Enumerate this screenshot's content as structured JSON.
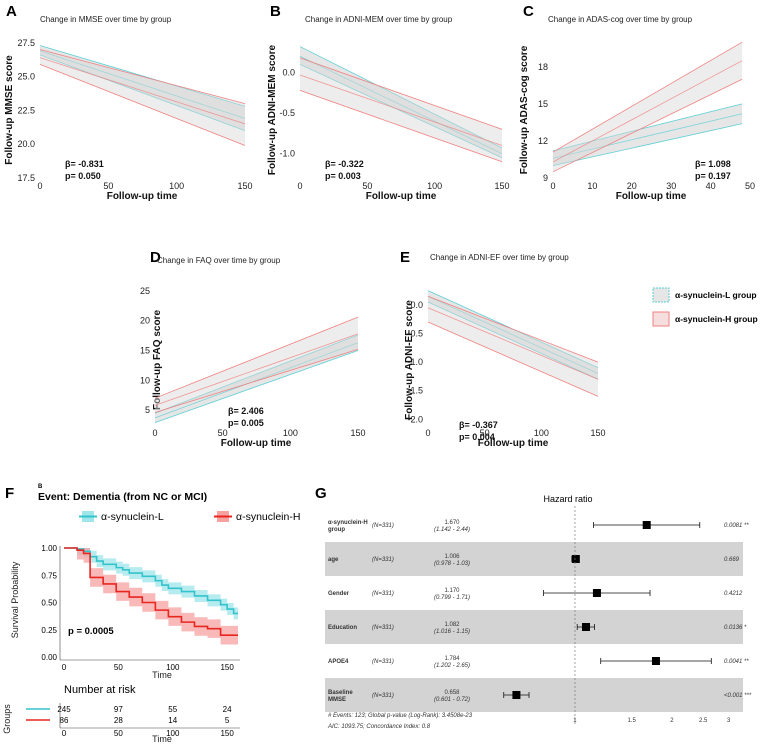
{
  "colors": {
    "groupL": "#5ccfd6",
    "groupH": "#f08080",
    "band": "#cfcfcf",
    "kmL": "#34c3cc",
    "kmH": "#e8261f",
    "kmLFill": "#9ee6ea",
    "kmHFill": "#f7a1a1",
    "forestShade": "#d3d3d3"
  },
  "legend": {
    "groupL": "α-synuclein-L group",
    "groupH": "α-synuclein-H group"
  },
  "panels": [
    {
      "letter": "A",
      "title": "Change in MMSE over time by group",
      "ylabel": "Follow-up MMSE score",
      "xlabel": "Follow-up time",
      "beta": "β= -0.831",
      "p": "p= 0.050",
      "xticks": [
        "0",
        "50",
        "100",
        "150"
      ],
      "yticks": [
        "27.5",
        "25.0",
        "22.5",
        "20.0",
        "17.5"
      ]
    },
    {
      "letter": "B",
      "title": "Change in ADNI-MEM over time by group",
      "ylabel": "Follow-up ADNI-MEM score",
      "xlabel": "Follow-up time",
      "beta": "β= -0.322",
      "p": "p= 0.003",
      "xticks": [
        "0",
        "50",
        "100",
        "150"
      ],
      "yticks": [
        "0.0",
        "-0.5",
        "-1.0"
      ]
    },
    {
      "letter": "C",
      "title": "Change in ADAS-cog over time by group",
      "ylabel": "Follow-up ADAS-cog score",
      "xlabel": "Follow-up time",
      "beta": "β= 1.098",
      "p": "p= 0.197",
      "xticks": [
        "0",
        "10",
        "20",
        "30",
        "40",
        "50"
      ],
      "yticks": [
        "18",
        "15",
        "12",
        "9"
      ]
    },
    {
      "letter": "D",
      "title": "Change in FAQ over time by group",
      "ylabel": "Follow-up FAQ score",
      "xlabel": "Follow-up time",
      "beta": "β= 2.406",
      "p": "p= 0.005",
      "xticks": [
        "0",
        "50",
        "100",
        "150"
      ],
      "yticks": [
        "25",
        "20",
        "15",
        "10",
        "5"
      ]
    },
    {
      "letter": "E",
      "title": "Change in ADNI-EF over time by group",
      "ylabel": "Follow-up ADNI-EF score",
      "xlabel": "Follow-up time",
      "beta": "β= -0.367",
      "p": "p= 0.004",
      "xticks": [
        "0",
        "50",
        "100",
        "150"
      ],
      "yticks": [
        "0.0",
        "-0.5",
        "-1.0",
        "-1.5",
        "-2.0"
      ]
    }
  ],
  "chart_data": [
    {
      "id": "A",
      "type": "line",
      "title": "Change in MMSE over time by group",
      "xlabel": "Follow-up time",
      "ylabel": "Follow-up MMSE score",
      "xlim": [
        0,
        150
      ],
      "ylim": [
        17.5,
        28.0
      ],
      "series": [
        {
          "name": "α-synuclein-L group",
          "x": [
            0,
            150
          ],
          "y": [
            26.9,
            21.9
          ],
          "lower": [
            26.6,
            21.0
          ],
          "upper": [
            27.3,
            22.8
          ]
        },
        {
          "name": "α-synuclein-H group",
          "x": [
            0,
            150
          ],
          "y": [
            26.4,
            21.5
          ],
          "lower": [
            25.9,
            19.9
          ],
          "upper": [
            27.0,
            23.0
          ]
        }
      ]
    },
    {
      "id": "B",
      "type": "line",
      "title": "Change in ADNI-MEM over time by group",
      "xlabel": "Follow-up time",
      "ylabel": "Follow-up ADNI-MEM score",
      "xlim": [
        0,
        150
      ],
      "ylim": [
        -1.3,
        0.45
      ],
      "series": [
        {
          "name": "α-synuclein-L group",
          "x": [
            0,
            150
          ],
          "y": [
            0.2,
            -1.0
          ],
          "lower": [
            0.1,
            -1.05
          ],
          "upper": [
            0.32,
            -0.93
          ]
        },
        {
          "name": "α-synuclein-H group",
          "x": [
            0,
            150
          ],
          "y": [
            -0.03,
            -0.9
          ],
          "lower": [
            -0.22,
            -1.1
          ],
          "upper": [
            0.18,
            -0.7
          ]
        }
      ]
    },
    {
      "id": "C",
      "type": "line",
      "title": "Change in ADAS-cog over time by group",
      "xlabel": "Follow-up time",
      "ylabel": "Follow-up ADAS-cog score",
      "xlim": [
        0,
        50
      ],
      "ylim": [
        9,
        20.5
      ],
      "series": [
        {
          "name": "α-synuclein-L group",
          "x": [
            0,
            48
          ],
          "y": [
            10.6,
            14.2
          ],
          "lower": [
            10.0,
            13.4
          ],
          "upper": [
            11.2,
            15.0
          ]
        },
        {
          "name": "α-synuclein-H group",
          "x": [
            0,
            48
          ],
          "y": [
            10.3,
            18.5
          ],
          "lower": [
            9.5,
            17.0
          ],
          "upper": [
            11.1,
            20.0
          ]
        }
      ]
    },
    {
      "id": "D",
      "type": "line",
      "title": "Change in FAQ over time by group",
      "xlabel": "Follow-up time",
      "ylabel": "Follow-up FAQ score",
      "xlim": [
        0,
        150
      ],
      "ylim": [
        2.5,
        26.5
      ],
      "series": [
        {
          "name": "α-synuclein-L group",
          "x": [
            0,
            150
          ],
          "y": [
            3.7,
            16.3
          ],
          "lower": [
            2.9,
            15.0
          ],
          "upper": [
            4.5,
            17.6
          ]
        },
        {
          "name": "α-synuclein-H group",
          "x": [
            0,
            150
          ],
          "y": [
            5.8,
            17.8
          ],
          "lower": [
            4.6,
            15.2
          ],
          "upper": [
            7.0,
            20.6
          ]
        }
      ]
    },
    {
      "id": "E",
      "type": "line",
      "title": "Change in ADNI-EF over time by group",
      "xlabel": "Follow-up time",
      "ylabel": "Follow-up ADNI-EF score",
      "xlim": [
        0,
        150
      ],
      "ylim": [
        -2.1,
        0.4
      ],
      "series": [
        {
          "name": "α-synuclein-L group",
          "x": [
            0,
            150
          ],
          "y": [
            0.15,
            -1.2
          ],
          "lower": [
            0.05,
            -1.3
          ],
          "upper": [
            0.25,
            -1.1
          ]
        },
        {
          "name": "α-synuclein-H group",
          "x": [
            0,
            150
          ],
          "y": [
            -0.05,
            -1.3
          ],
          "lower": [
            -0.3,
            -1.6
          ],
          "upper": [
            0.15,
            -1.0
          ]
        }
      ]
    },
    {
      "id": "F",
      "type": "line",
      "subtype": "kaplan-meier",
      "title": "Event: Dementia (from NC or MCI)",
      "xlabel": "Time",
      "ylabel": "Survival Probability",
      "xlim": [
        0,
        160
      ],
      "ylim": [
        0,
        1
      ],
      "legend": [
        "α-synuclein-L",
        "α-synuclein-H"
      ],
      "pvalue": "p = 0.0005",
      "series": [
        {
          "name": "α-synuclein-L",
          "x": [
            0,
            12,
            18,
            24,
            30,
            36,
            48,
            54,
            60,
            72,
            84,
            90,
            96,
            108,
            120,
            132,
            144,
            150,
            156
          ],
          "y": [
            1.0,
            0.99,
            0.97,
            0.92,
            0.88,
            0.85,
            0.82,
            0.8,
            0.77,
            0.74,
            0.7,
            0.66,
            0.63,
            0.6,
            0.56,
            0.52,
            0.48,
            0.44,
            0.4
          ],
          "ci_half": 0.055
        },
        {
          "name": "α-synuclein-H",
          "x": [
            0,
            12,
            18,
            24,
            36,
            48,
            60,
            72,
            84,
            96,
            108,
            120,
            132,
            144,
            156,
            160
          ],
          "y": [
            1.0,
            0.98,
            0.95,
            0.73,
            0.67,
            0.6,
            0.55,
            0.5,
            0.43,
            0.37,
            0.32,
            0.28,
            0.26,
            0.2,
            0.2,
            0.2
          ],
          "ci_half": 0.085
        }
      ],
      "risk_table": {
        "title": "Number at risk",
        "ylabel": "Groups",
        "times": [
          "0",
          "50",
          "100",
          "150"
        ],
        "rows": [
          {
            "group": "α-synuclein-L",
            "counts": [
              "245",
              "97",
              "55",
              "24"
            ]
          },
          {
            "group": "α-synuclein-H",
            "counts": [
              "86",
              "28",
              "14",
              "5"
            ]
          }
        ]
      }
    },
    {
      "id": "G",
      "type": "scatter",
      "subtype": "forest",
      "title": "Hazard ratio",
      "xscale": "log",
      "xticks": [
        "1",
        "1.5",
        "2",
        "2.5",
        "3"
      ],
      "rows": [
        {
          "label": "α-synuclein-H group",
          "n": "(N=331)",
          "hr_text": "1.670",
          "ci_text": "(1.142 - 2.44)",
          "hr": 1.67,
          "lo": 1.142,
          "hi": 2.44,
          "p": "0.0081 **",
          "shaded": false
        },
        {
          "label": "age",
          "n": "(N=331)",
          "hr_text": "1.006",
          "ci_text": "(0.978 - 1.03)",
          "hr": 1.006,
          "lo": 0.978,
          "hi": 1.03,
          "p": "0.669",
          "shaded": true
        },
        {
          "label": "Gender",
          "n": "(N=331)",
          "hr_text": "1.170",
          "ci_text": "(0.799 - 1.71)",
          "hr": 1.17,
          "lo": 0.799,
          "hi": 1.71,
          "p": "0.4212",
          "shaded": false
        },
        {
          "label": "Education",
          "n": "(N=331)",
          "hr_text": "1.082",
          "ci_text": "(1.016 - 1.15)",
          "hr": 1.082,
          "lo": 1.016,
          "hi": 1.15,
          "p": "0.0136 *",
          "shaded": true
        },
        {
          "label": "APOE4",
          "n": "(N=331)",
          "hr_text": "1.784",
          "ci_text": "(1.202 - 2.65)",
          "hr": 1.784,
          "lo": 1.202,
          "hi": 2.65,
          "p": "0.0041 **",
          "shaded": false
        },
        {
          "label": "Baseline MMSE",
          "n": "(N=331)",
          "hr_text": "0.658",
          "ci_text": "(0.601 - 0.72)",
          "hr": 0.658,
          "lo": 0.601,
          "hi": 0.72,
          "p": "<0.001 ***",
          "shaded": true
        }
      ],
      "footer1": "# Events: 123; Global p-value (Log-Rank): 3.4508e-23",
      "footer2": "AIC: 1093.75; Concordance Index: 0.8"
    }
  ],
  "panelF": {
    "letter": "F",
    "sublabel": "B"
  },
  "panelG": {
    "letter": "G"
  }
}
